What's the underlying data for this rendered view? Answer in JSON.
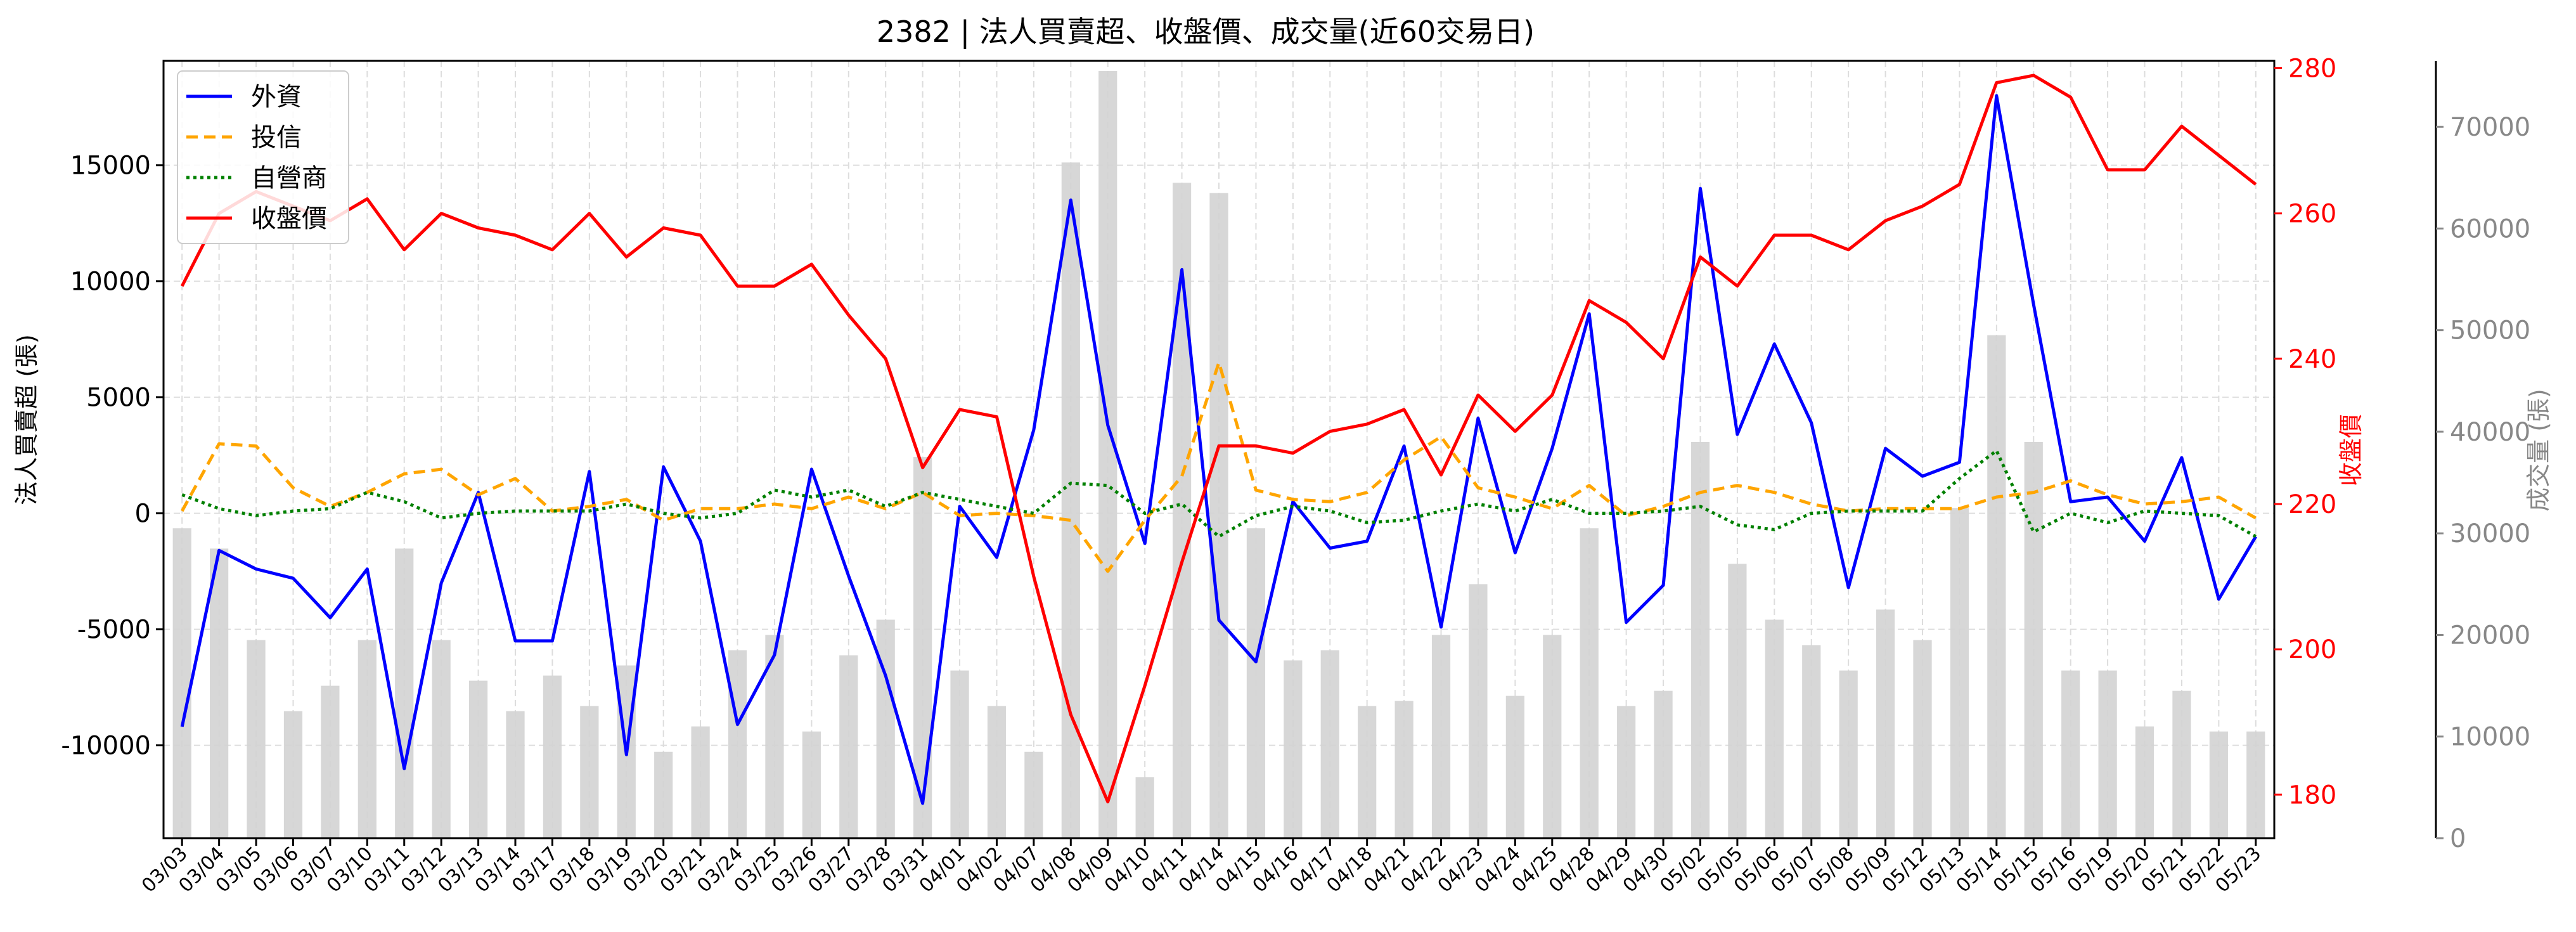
{
  "chart_data": {
    "type": "line",
    "title": "2382 | 法人買賣超、收盤價、成交量(近60交易日)",
    "x": [
      "03/03",
      "03/04",
      "03/05",
      "03/06",
      "03/07",
      "03/10",
      "03/11",
      "03/12",
      "03/13",
      "03/14",
      "03/17",
      "03/18",
      "03/19",
      "03/20",
      "03/21",
      "03/24",
      "03/25",
      "03/26",
      "03/27",
      "03/28",
      "03/31",
      "04/01",
      "04/02",
      "04/07",
      "04/08",
      "04/09",
      "04/10",
      "04/11",
      "04/14",
      "04/15",
      "04/16",
      "04/17",
      "04/18",
      "04/21",
      "04/22",
      "04/23",
      "04/24",
      "04/25",
      "04/28",
      "04/29",
      "04/30",
      "05/02",
      "05/05",
      "05/06",
      "05/07",
      "05/08",
      "05/09",
      "05/12",
      "05/13",
      "05/14",
      "05/15",
      "05/16",
      "05/19",
      "05/20",
      "05/21",
      "05/22",
      "05/23"
    ],
    "y_left": {
      "label": "法人買賣超 (張)",
      "ticks": [
        -10000,
        -5000,
        0,
        5000,
        10000,
        15000
      ],
      "range": [
        -14000,
        19500
      ]
    },
    "y_right1": {
      "label": "收盤價",
      "ticks": [
        180,
        200,
        220,
        240,
        260,
        280
      ],
      "range": [
        174,
        281
      ],
      "color": "#ff0000"
    },
    "y_right2": {
      "label": "成交量 (張)",
      "ticks": [
        0,
        10000,
        20000,
        30000,
        40000,
        50000,
        60000,
        70000
      ],
      "range": [
        0,
        76500
      ],
      "color": "#888888"
    },
    "grid": true,
    "legend_position": "top-left",
    "series": [
      {
        "name": "外資",
        "axis": "left",
        "color": "#0000ff",
        "style": "solid",
        "values": [
          -9200,
          -1600,
          -2400,
          -2800,
          -4500,
          -2400,
          -11000,
          -3000,
          900,
          -5500,
          -5500,
          1800,
          -10400,
          2000,
          -1200,
          -9100,
          -6100,
          1900,
          -2700,
          -7000,
          -12500,
          300,
          -1900,
          3600,
          13500,
          3800,
          -1300,
          10500,
          -4600,
          -6400,
          500,
          -1500,
          -1200,
          2900,
          -4900,
          4100,
          -1700,
          2800,
          8600,
          -4700,
          -3100,
          14000,
          3400,
          7300,
          3900,
          -3200,
          2800,
          1600,
          2200,
          18000,
          9000,
          500,
          700,
          -1200,
          2400,
          -3700,
          -1000
        ]
      },
      {
        "name": "投信",
        "axis": "left",
        "color": "#ffa500",
        "style": "dashed",
        "values": [
          100,
          3000,
          2900,
          1100,
          300,
          900,
          1700,
          1900,
          800,
          1500,
          100,
          300,
          600,
          -300,
          200,
          200,
          400,
          200,
          700,
          200,
          900,
          -100,
          0,
          -100,
          -300,
          -2500,
          -300,
          1600,
          6500,
          1000,
          600,
          500,
          900,
          2300,
          3300,
          1100,
          700,
          200,
          1200,
          -100,
          300,
          900,
          1200,
          900,
          400,
          100,
          200,
          200,
          200,
          700,
          900,
          1400,
          800,
          400,
          500,
          700,
          -200
        ]
      },
      {
        "name": "自營商",
        "axis": "left",
        "color": "#008000",
        "style": "dotted",
        "values": [
          800,
          200,
          -100,
          100,
          200,
          900,
          500,
          -200,
          0,
          100,
          100,
          100,
          400,
          0,
          -200,
          0,
          1000,
          700,
          1000,
          300,
          900,
          600,
          300,
          0,
          1300,
          1200,
          0,
          400,
          -1000,
          -100,
          300,
          100,
          -400,
          -300,
          100,
          400,
          100,
          600,
          0,
          0,
          100,
          300,
          -500,
          -700,
          0,
          100,
          100,
          100,
          1500,
          2700,
          -800,
          0,
          -400,
          100,
          0,
          -100,
          -1000
        ]
      },
      {
        "name": "收盤價",
        "axis": "right1",
        "color": "#ff0000",
        "style": "solid",
        "values": [
          250,
          260,
          263,
          261,
          259,
          262,
          255,
          260,
          258,
          257,
          255,
          260,
          254,
          258,
          257,
          250,
          250,
          253,
          246,
          240,
          225,
          233,
          232,
          210,
          191,
          179,
          195,
          212,
          228,
          228,
          227,
          230,
          231,
          233,
          224,
          235,
          230,
          235,
          248,
          245,
          240,
          254,
          250,
          257,
          257,
          255,
          259,
          261,
          264,
          278,
          279,
          276,
          266,
          266,
          272,
          268,
          264
        ]
      },
      {
        "name": "成交量",
        "axis": "right2",
        "type": "bar",
        "color": "#d3d3d3",
        "values": [
          30500,
          28500,
          19500,
          12500,
          15000,
          19500,
          28500,
          19500,
          15500,
          12500,
          16000,
          13000,
          17000,
          8500,
          11000,
          18500,
          20000,
          10500,
          18000,
          21500,
          37500,
          16500,
          13000,
          8500,
          66500,
          75500,
          6000,
          64500,
          63500,
          30500,
          17500,
          18500,
          13000,
          13500,
          20000,
          25000,
          14000,
          20000,
          30500,
          13000,
          14500,
          39000,
          27000,
          21500,
          19000,
          16500,
          22500,
          19500,
          32500,
          49500,
          39000,
          16500,
          16500,
          11000,
          14500,
          10500,
          10500
        ]
      }
    ]
  }
}
